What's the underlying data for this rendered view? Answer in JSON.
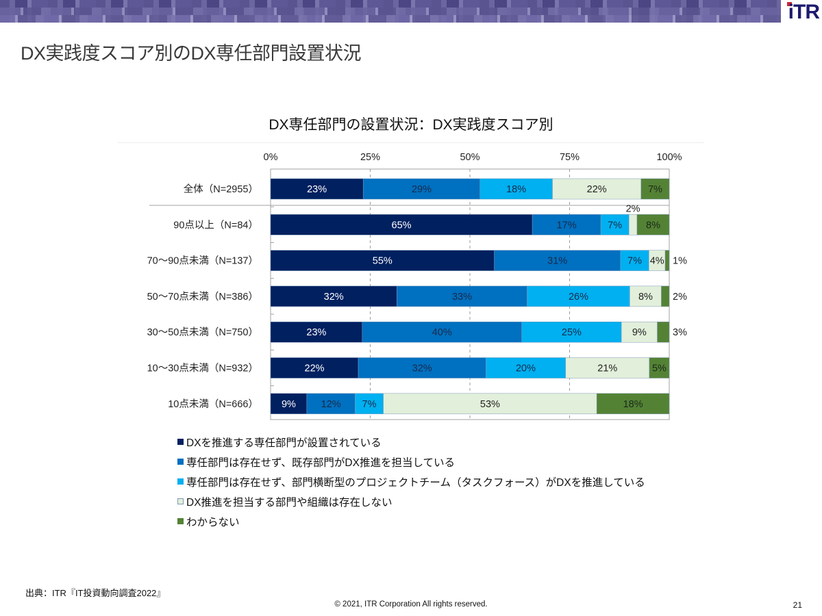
{
  "header": {
    "logo_text": "iTR",
    "page_title": "DX実践度スコア別のDX専任部門設置状況"
  },
  "colors": {
    "series": [
      "#002060",
      "#0070C0",
      "#00B0F0",
      "#E2EFDA",
      "#548235"
    ],
    "label_text": [
      "#ffffff",
      "#1a2a4a",
      "#1a2a4a",
      "#222222",
      "#1a2a1a"
    ]
  },
  "chart_data": {
    "type": "bar",
    "orientation": "horizontal",
    "stacked": true,
    "title": "DX専任部門の設置状況：DX実践度スコア別",
    "xlabel": "",
    "ylabel": "",
    "xlim": [
      0,
      100
    ],
    "x_ticks": [
      "0%",
      "25%",
      "50%",
      "75%",
      "100%"
    ],
    "grid": "vertical dashed at 25/50/75",
    "legend_position": "bottom-left",
    "categories": [
      "全体（N=2955）",
      "90点以上（N=84）",
      "70～90点未満（N=137）",
      "50～70点未満（N=386）",
      "30～50点未満（N=750）",
      "10～30点未満（N=932）",
      "10点未満（N=666）"
    ],
    "series": [
      {
        "name": "DXを推進する専任部門が設置されている",
        "values": [
          23,
          65,
          55,
          32,
          23,
          22,
          9
        ]
      },
      {
        "name": "専任部門は存在せず、既存部門がDX推進を担当している",
        "values": [
          29,
          17,
          31,
          33,
          40,
          32,
          12
        ]
      },
      {
        "name": "専任部門は存在せず、部門横断型のプロジェクトチーム（タスクフォース）がDXを推進している",
        "values": [
          18,
          7,
          7,
          26,
          25,
          20,
          7
        ]
      },
      {
        "name": "DX推進を担当する部門や組織は存在しない",
        "values": [
          22,
          2,
          4,
          8,
          9,
          21,
          53
        ]
      },
      {
        "name": "わからない",
        "values": [
          7,
          8,
          1,
          2,
          3,
          5,
          18
        ]
      }
    ],
    "data_labels": [
      [
        "23%",
        "29%",
        "18%",
        "22%",
        "7%"
      ],
      [
        "65%",
        "17%",
        "7%",
        "2%",
        "8%"
      ],
      [
        "55%",
        "31%",
        "7%",
        "4%",
        "1%"
      ],
      [
        "32%",
        "33%",
        "26%",
        "8%",
        "2%"
      ],
      [
        "23%",
        "40%",
        "25%",
        "9%",
        "3%"
      ],
      [
        "22%",
        "32%",
        "20%",
        "21%",
        "5%"
      ],
      [
        "9%",
        "12%",
        "7%",
        "53%",
        "18%"
      ]
    ],
    "outside_labels": {
      "1-3": "above",
      "2-4": "right",
      "3-4": "right",
      "4-4": "right"
    }
  },
  "footer": {
    "source": "出典：ITR『IT投資動向調査2022』",
    "copyright": "© 2021, ITR Corporation  All rights reserved.",
    "page_number": "21"
  }
}
